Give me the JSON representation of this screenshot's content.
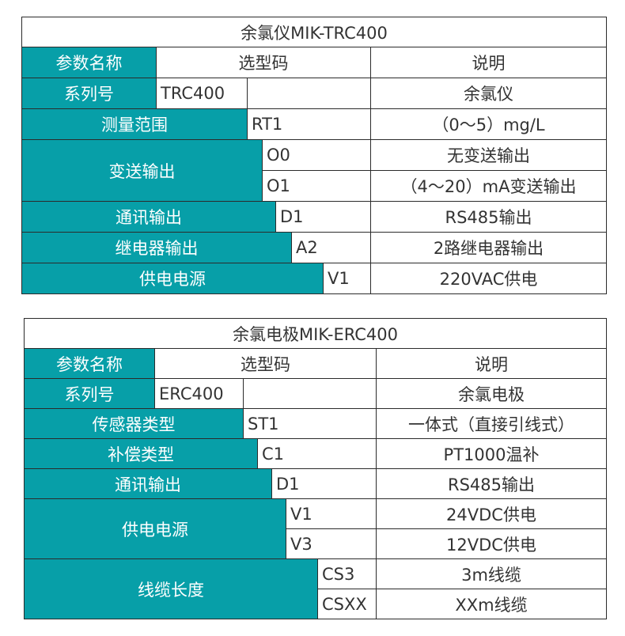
{
  "colors": {
    "teal": "#079fa8",
    "border": "#2b2b2b",
    "text": "#333333"
  },
  "tables": [
    {
      "title": "余氯仪MIK-TRC400",
      "header": {
        "param": "参数名称",
        "code": "选型码",
        "desc": "说明"
      },
      "series": {
        "label": "系列号",
        "code": "TRC400",
        "desc": "余氯仪"
      },
      "rows": [
        {
          "label": "测量范围",
          "options": [
            {
              "code": "RT1",
              "desc": "（0～5）mg/L"
            }
          ]
        },
        {
          "label": "变送输出",
          "options": [
            {
              "code": "O0",
              "desc": "无变送输出"
            },
            {
              "code": "O1",
              "desc": "（4～20）mA变送输出"
            }
          ]
        },
        {
          "label": "通讯输出",
          "options": [
            {
              "code": "D1",
              "desc": "RS485输出"
            }
          ]
        },
        {
          "label": "继电器输出",
          "options": [
            {
              "code": "A2",
              "desc": "2路继电器输出"
            }
          ]
        },
        {
          "label": "供电电源",
          "options": [
            {
              "code": "V1",
              "desc": "220VAC供电"
            }
          ]
        }
      ]
    },
    {
      "title": "余氯电极MIK-ERC400",
      "header": {
        "param": "参数名称",
        "code": "选型码",
        "desc": "说明"
      },
      "series": {
        "label": "系列号",
        "code": "ERC400",
        "desc": "余氯电极"
      },
      "rows": [
        {
          "label": "传感器类型",
          "options": [
            {
              "code": "ST1",
              "desc": "一体式（直接引线式）"
            }
          ]
        },
        {
          "label": "补偿类型",
          "options": [
            {
              "code": "C1",
              "desc": "PT1000温补"
            }
          ]
        },
        {
          "label": "通讯输出",
          "options": [
            {
              "code": "D1",
              "desc": "RS485输出"
            }
          ]
        },
        {
          "label": "供电电源",
          "options": [
            {
              "code": "V1",
              "desc": "24VDC供电"
            },
            {
              "code": "V3",
              "desc": "12VDC供电"
            }
          ]
        },
        {
          "label": "线缆长度",
          "options": [
            {
              "code": "CS3",
              "desc": "3m线缆"
            },
            {
              "code": "CSXX",
              "desc": "XXm线缆"
            }
          ]
        }
      ]
    }
  ]
}
